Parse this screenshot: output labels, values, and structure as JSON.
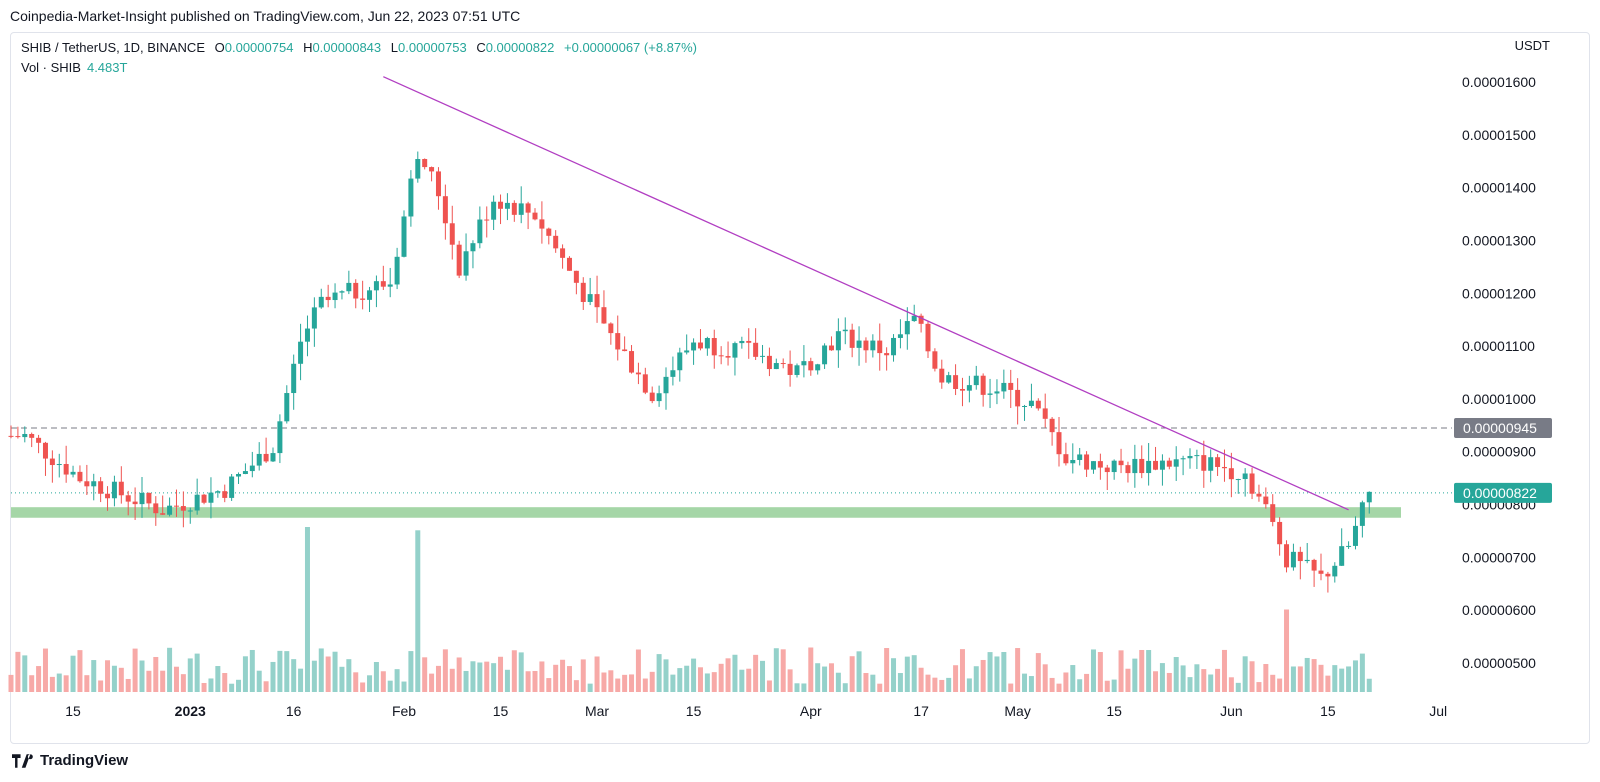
{
  "header": {
    "publish_line": "Coinpedia-Market-Insight published on TradingView.com, Jun 22, 2023 07:51 UTC"
  },
  "legend": {
    "symbol": "SHIB / TetherUS, 1D, BINANCE",
    "o_label": "O",
    "o_value": "0.00000754",
    "h_label": "H",
    "h_value": "0.00000843",
    "l_label": "L",
    "l_value": "0.00000753",
    "c_label": "C",
    "c_value": "0.00000822",
    "change": "+0.00000067 (+8.87%)",
    "vol_label": "Vol · SHIB",
    "vol_value": "4.483T"
  },
  "price_axis": {
    "unit": "USDT",
    "ticks": [
      "0.00001600",
      "0.00001500",
      "0.00001400",
      "0.00001300",
      "0.00001200",
      "0.00001100",
      "0.00001000",
      "0.00000900",
      "0.00000800",
      "0.00000700",
      "0.00000600",
      "0.00000500"
    ],
    "resistance_label": "0.00000945",
    "last_price_label": "0.00000822"
  },
  "time_axis": {
    "ticks": [
      "15",
      "2023",
      "16",
      "Feb",
      "15",
      "Mar",
      "15",
      "Apr",
      "17",
      "May",
      "15",
      "Jun",
      "15",
      "Jul"
    ]
  },
  "footer": {
    "brand": "TradingView"
  },
  "colors": {
    "up": "#26a69a",
    "down": "#ef5350",
    "vol_up": "#94d1ca",
    "vol_down": "#f7a9a7",
    "trendline": "#b13ec2",
    "support_zone": "#a5d6a7",
    "resistance_badge": "#787b86"
  },
  "chart_data": {
    "type": "candlestick",
    "title": "SHIB / TetherUS, 1D, BINANCE",
    "ylabel": "USDT",
    "ylim": [
      4.5e-06,
      1.65e-05
    ],
    "x_range": [
      "2022-12-06",
      "2023-07-03"
    ],
    "resistance_level": 9.45e-06,
    "last_price": 8.22e-06,
    "support_zone": [
      7.75e-06,
      7.95e-06
    ],
    "trendline": {
      "from": {
        "date": "2023-01-29",
        "price": 1.61e-05
      },
      "to": {
        "date": "2023-06-18",
        "price": 7.9e-06
      }
    },
    "ohlc_keypoints": [
      {
        "date": "2022-12-08",
        "price": 9.3e-06
      },
      {
        "date": "2022-12-16",
        "price": 8.5e-06
      },
      {
        "date": "2022-12-28",
        "price": 7.9e-06
      },
      {
        "date": "2023-01-06",
        "price": 8.3e-06
      },
      {
        "date": "2023-01-13",
        "price": 9.1e-06
      },
      {
        "date": "2023-01-17",
        "price": 1.11e-05
      },
      {
        "date": "2023-01-20",
        "price": 1.18e-05
      },
      {
        "date": "2023-01-24",
        "price": 1.2e-05
      },
      {
        "date": "2023-01-30",
        "price": 1.22e-05
      },
      {
        "date": "2023-02-03",
        "price": 1.47e-05
      },
      {
        "date": "2023-02-06",
        "price": 1.39e-05
      },
      {
        "date": "2023-02-09",
        "price": 1.25e-05
      },
      {
        "date": "2023-02-14",
        "price": 1.38e-05
      },
      {
        "date": "2023-02-20",
        "price": 1.35e-05
      },
      {
        "date": "2023-02-27",
        "price": 1.2e-05
      },
      {
        "date": "2023-03-03",
        "price": 1.12e-05
      },
      {
        "date": "2023-03-09",
        "price": 1.01e-05
      },
      {
        "date": "2023-03-15",
        "price": 1.11e-05
      },
      {
        "date": "2023-03-23",
        "price": 1.09e-05
      },
      {
        "date": "2023-03-30",
        "price": 1.05e-05
      },
      {
        "date": "2023-04-05",
        "price": 1.12e-05
      },
      {
        "date": "2023-04-12",
        "price": 1.09e-05
      },
      {
        "date": "2023-04-16",
        "price": 1.15e-05
      },
      {
        "date": "2023-04-20",
        "price": 1.04e-05
      },
      {
        "date": "2023-04-28",
        "price": 1.02e-05
      },
      {
        "date": "2023-05-03",
        "price": 9.9e-06
      },
      {
        "date": "2023-05-08",
        "price": 8.9e-06
      },
      {
        "date": "2023-05-15",
        "price": 8.7e-06
      },
      {
        "date": "2023-05-22",
        "price": 8.8e-06
      },
      {
        "date": "2023-05-28",
        "price": 8.8e-06
      },
      {
        "date": "2023-06-03",
        "price": 8.6e-06
      },
      {
        "date": "2023-06-06",
        "price": 7.9e-06
      },
      {
        "date": "2023-06-09",
        "price": 7e-06
      },
      {
        "date": "2023-06-14",
        "price": 6.6e-06
      },
      {
        "date": "2023-06-18",
        "price": 7.2e-06
      },
      {
        "date": "2023-06-21",
        "price": 8.2e-06
      }
    ],
    "volume_peaks": [
      {
        "date": "2023-01-18",
        "level": 1.0
      },
      {
        "date": "2023-02-03",
        "level": 0.98
      },
      {
        "date": "2023-06-09",
        "level": 0.5
      }
    ]
  }
}
